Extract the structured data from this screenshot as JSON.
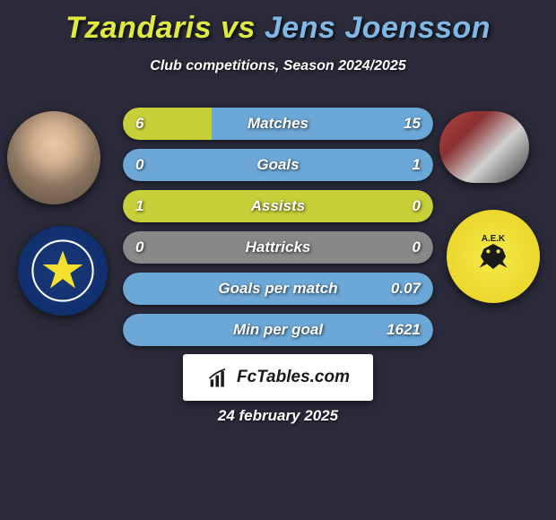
{
  "title": {
    "player1": "Tzandaris",
    "vs": "vs",
    "player2": "Jens Joensson",
    "player1_color": "#dfe940",
    "player2_color": "#7fb8e6"
  },
  "subtitle": "Club competitions, Season 2024/2025",
  "bar_colors": {
    "left": "#c7d038",
    "right": "#6ba8d8",
    "neutral": "#888888"
  },
  "stats": [
    {
      "label": "Matches",
      "left_val": "6",
      "right_val": "15",
      "left_pct": 28.6,
      "right_pct": 71.4
    },
    {
      "label": "Goals",
      "left_val": "0",
      "right_val": "1",
      "left_pct": 0,
      "right_pct": 100
    },
    {
      "label": "Assists",
      "left_val": "1",
      "right_val": "0",
      "left_pct": 100,
      "right_pct": 0
    },
    {
      "label": "Hattricks",
      "left_val": "0",
      "right_val": "0",
      "left_pct": 0,
      "right_pct": 0
    },
    {
      "label": "Goals per match",
      "left_val": "",
      "right_val": "0.07",
      "left_pct": 0,
      "right_pct": 100
    },
    {
      "label": "Min per goal",
      "left_val": "",
      "right_val": "1621",
      "left_pct": 0,
      "right_pct": 100
    }
  ],
  "left_club": {
    "name": "Asteras Tripolis",
    "bg_color": "#1a3a7a",
    "star_color": "#f5e030"
  },
  "right_club": {
    "name": "AEK",
    "bg_color": "#f5e94a",
    "eagle_color": "#1a1a1a"
  },
  "site_label": "FcTables.com",
  "date": "24 february 2025"
}
